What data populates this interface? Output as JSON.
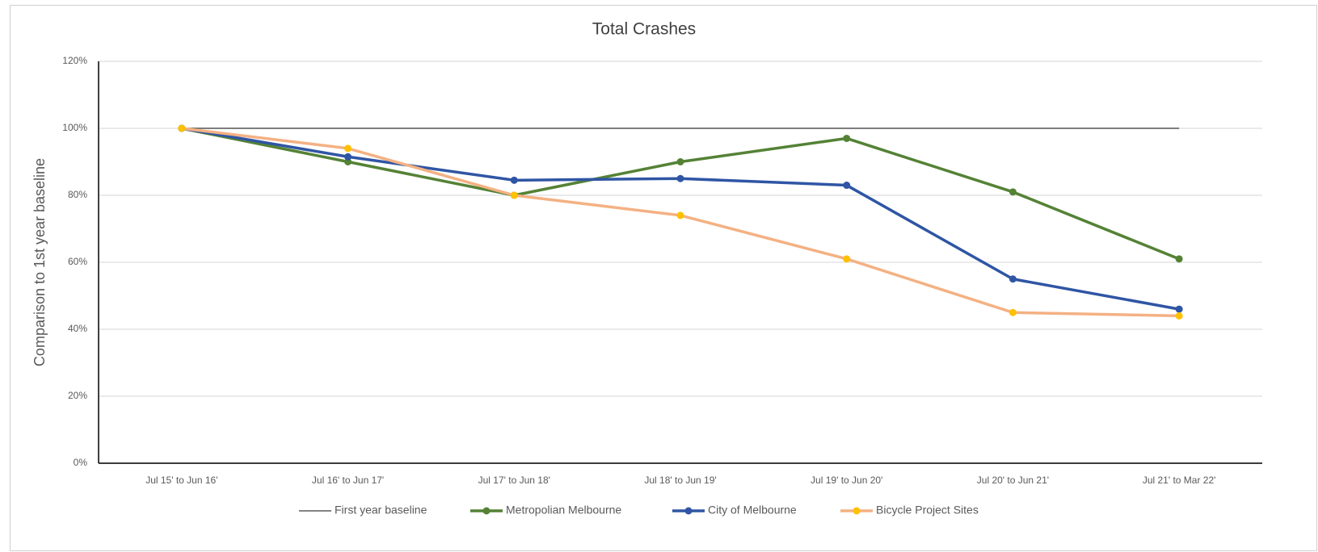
{
  "chart_data": {
    "type": "line",
    "title": "Total Crashes",
    "y_label": "Comparison to 1st year baseline",
    "categories": [
      "Jul 15' to Jun 16'",
      "Jul 16' to Jun 17'",
      "Jul 17' to Jun 18'",
      "Jul 18' to Jun 19'",
      "Jul 19' to Jun 20'",
      "Jul 20' to Jun 21'",
      "Jul 21' to Mar 22'"
    ],
    "series": [
      {
        "name": "First year baseline",
        "color": "#595959",
        "markers": false,
        "values": [
          100,
          100,
          100,
          100,
          100,
          100,
          100
        ]
      },
      {
        "name": "Metropolian Melbourne",
        "color": "#548235",
        "marker_color": "#548235",
        "markers": true,
        "values": [
          100,
          90,
          80,
          90,
          97,
          81,
          61
        ]
      },
      {
        "name": "City of Melbourne",
        "color": "#2f55a4",
        "marker_color": "#2f55a4",
        "markers": true,
        "values": [
          100,
          91.5,
          84.5,
          85,
          83,
          55,
          46
        ]
      },
      {
        "name": "Bicycle Project Sites",
        "color": "#f4b183",
        "marker_color": "#ffc000",
        "markers": true,
        "values": [
          100,
          94,
          80,
          74,
          61,
          45,
          44
        ]
      }
    ],
    "ylim": [
      0,
      120
    ],
    "yticks": [
      {
        "value": 0,
        "label": "0%"
      },
      {
        "value": 20,
        "label": "20%"
      },
      {
        "value": 40,
        "label": "40%"
      },
      {
        "value": 60,
        "label": "60%"
      },
      {
        "value": 80,
        "label": "80%"
      },
      {
        "value": 100,
        "label": "100%"
      },
      {
        "value": 120,
        "label": "120%"
      }
    ],
    "grid": true,
    "legend": "bottom"
  }
}
